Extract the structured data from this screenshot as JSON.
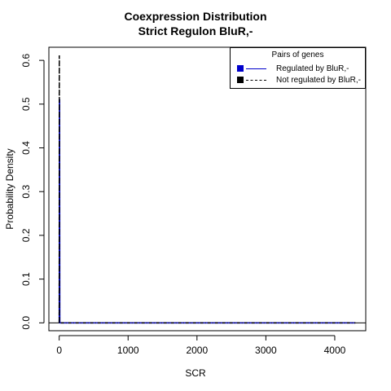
{
  "chart_data": {
    "type": "line",
    "title": "Coexpression Distribution",
    "subtitle": "Strict Regulon BluR,-",
    "xlabel": "SCR",
    "ylabel": "Probability Density",
    "xlim": [
      -150,
      4450
    ],
    "ylim": [
      -0.018,
      0.63
    ],
    "x_ticks": [
      0,
      1000,
      2000,
      3000,
      4000
    ],
    "y_ticks": [
      0.0,
      0.1,
      0.2,
      0.3,
      0.4,
      0.5,
      0.6
    ],
    "legend": {
      "title": "Pairs of genes",
      "position": "top-right",
      "entries": [
        {
          "label": "Regulated by  BluR,-",
          "color": "#0000cc",
          "line_style": "solid"
        },
        {
          "label": "Not regulated by  BluR,-",
          "color": "#000000",
          "line_style": "dashdot"
        }
      ]
    },
    "series": [
      {
        "name": "Regulated by  BluR,-",
        "color": "#0000cc",
        "line_style": "solid",
        "x": [
          0,
          3,
          6,
          9,
          12,
          4300
        ],
        "y": [
          0,
          0.51,
          0.51,
          0,
          0,
          0
        ]
      },
      {
        "name": "Not regulated by  BluR,-",
        "color": "#000000",
        "line_style": "dashdot",
        "x": [
          0,
          1,
          2,
          3,
          4300
        ],
        "y": [
          0,
          0.61,
          0.61,
          0,
          0
        ]
      }
    ]
  }
}
